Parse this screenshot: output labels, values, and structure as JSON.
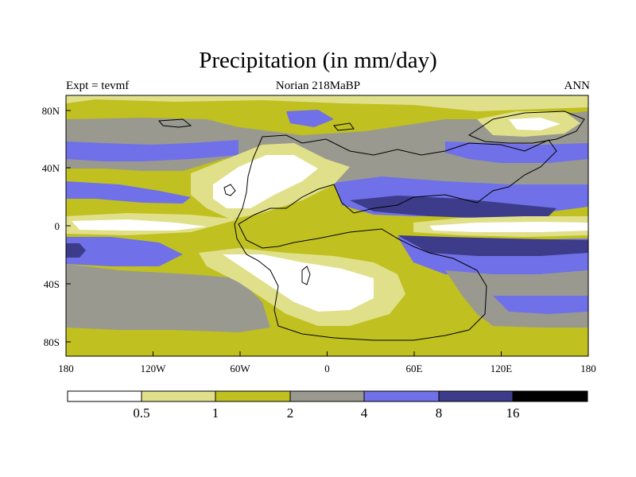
{
  "title": "Precipitation (in mm/day)",
  "subtitle_left": "Expt = tevmf",
  "subtitle_center": "Norian 218MaBP",
  "subtitle_right": "ANN",
  "colors": {
    "lt_0_5": "#ffffff",
    "0_5_1": "#e0e08a",
    "1_2": "#c0c020",
    "2_4": "#999990",
    "4_8": "#7070e8",
    "8_16": "#3c3c8a",
    "gt_16": "#000000"
  },
  "map": {
    "projection": "cylindrical-equidistant",
    "lon_range": [
      -180,
      180
    ],
    "lat_range": [
      -90,
      90
    ],
    "x_tick_labels": [
      "180",
      "120W",
      "60W",
      "0",
      "60E",
      "120E",
      "180"
    ],
    "y_tick_labels": [
      "80N",
      "40N",
      "0",
      "40S",
      "80S"
    ]
  },
  "colorbar": {
    "levels": [
      "0.5",
      "1",
      "2",
      "4",
      "8",
      "16"
    ]
  }
}
